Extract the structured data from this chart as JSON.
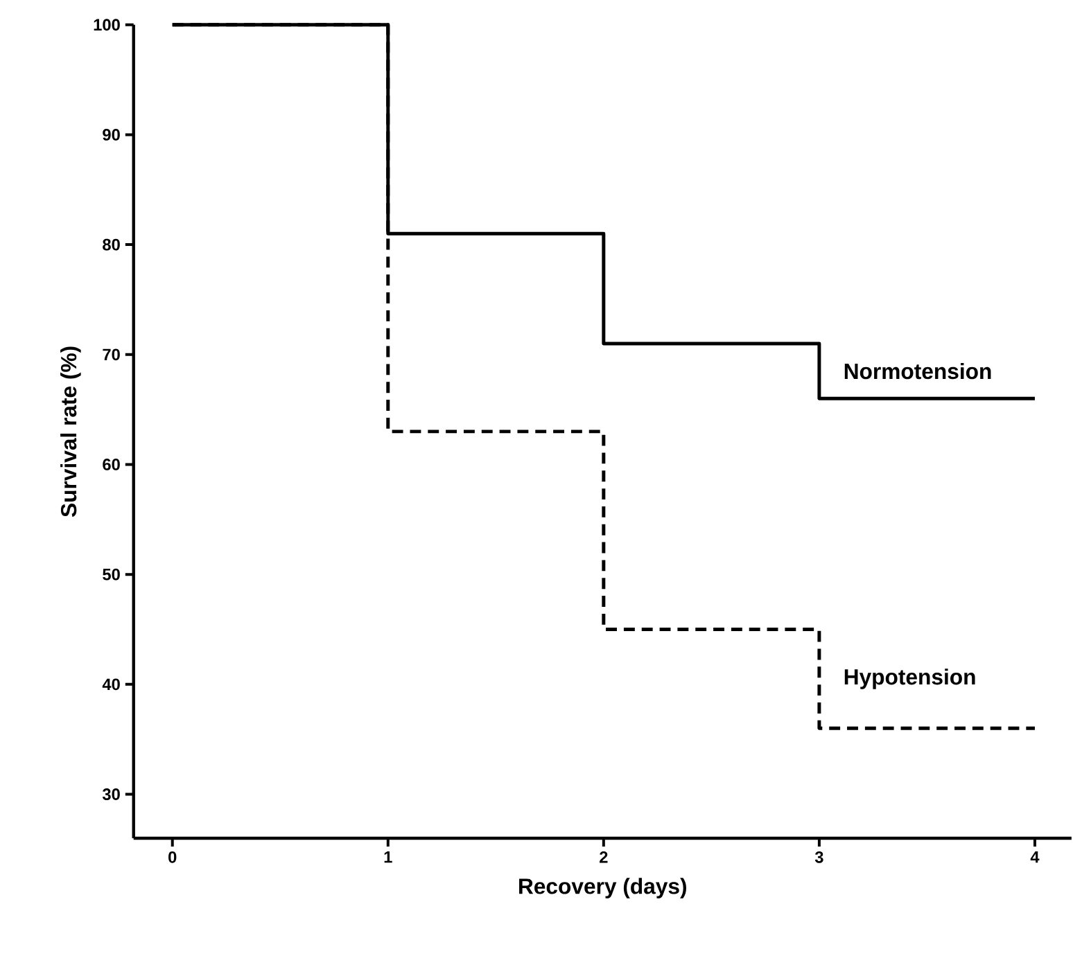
{
  "chart_data": {
    "type": "step",
    "xlabel": "Recovery (days)",
    "ylabel": "Survival rate (%)",
    "x": [
      0,
      1,
      2,
      3,
      4
    ],
    "series": [
      {
        "name": "Normotension",
        "color": "#000000",
        "line_style": "solid",
        "values": [
          100,
          81,
          71,
          66,
          66
        ]
      },
      {
        "name": "Hypotension",
        "color": "#000000",
        "line_style": "dashed",
        "values": [
          100,
          63,
          45,
          36,
          36
        ]
      }
    ],
    "xlim": [
      -0.18,
      4.17
    ],
    "ylim": [
      26,
      100
    ],
    "xticks": [
      0,
      1,
      2,
      3,
      4
    ],
    "yticks": [
      30,
      40,
      50,
      60,
      70,
      80,
      90,
      100
    ],
    "grid": false,
    "legend": false,
    "marker": "none"
  }
}
